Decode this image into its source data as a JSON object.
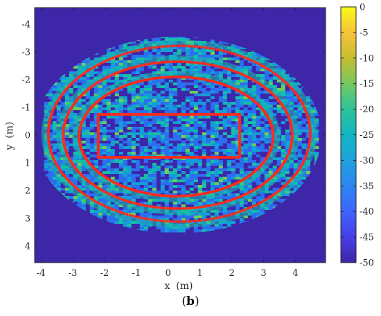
{
  "figure": {
    "caption_open": "(",
    "caption_letter": "b",
    "caption_close": ")"
  },
  "chart_data": {
    "type": "heatmap",
    "title": "",
    "xlabel": "x  (m)",
    "ylabel": "y  (m)",
    "xlim": [
      -4.2,
      4.95
    ],
    "ylim": [
      4.6,
      -4.6
    ],
    "y_axis_reversed": true,
    "xticks": [
      -4,
      -3,
      -2,
      -1,
      0,
      1,
      2,
      3,
      4
    ],
    "xtick_labels": [
      "-4",
      "-3",
      "-2",
      "-1",
      "0",
      "1",
      "2",
      "3",
      "4"
    ],
    "yticks": [
      -4,
      -3,
      -2,
      -1,
      0,
      1,
      2,
      3,
      4
    ],
    "ytick_labels": [
      "-4",
      "-3",
      "-2",
      "-1",
      "0",
      "1",
      "2",
      "3",
      "4"
    ],
    "colorbar": {
      "range": [
        -50,
        0
      ],
      "ticks": [
        0,
        -5,
        -10,
        -15,
        -20,
        -25,
        -30,
        -35,
        -40,
        -45,
        -50
      ],
      "tick_labels": [
        "0",
        "-5",
        "-10",
        "-15",
        "-20",
        "-25",
        "-30",
        "-35",
        "-40",
        "-45",
        "-50"
      ],
      "colormap": "parula"
    },
    "background_color": "#3e26a8",
    "marker_color": "#ff2a1a",
    "field_colors": [
      "#3e26a8",
      "#2c6ef0",
      "#139ed8",
      "#16bfa6",
      "#6ccf5a"
    ],
    "region": {
      "x_range": [
        -3.9,
        4.7
      ],
      "y_range": [
        -3.6,
        3.5
      ]
    },
    "scatter_marker_traces": [
      {
        "name": "outer ring",
        "cx": 0.35,
        "cy": -0.05,
        "rx": 4.12,
        "ry": 3.17
      },
      {
        "name": "middle ring",
        "cx": 0.3,
        "cy": 0.0,
        "rx": 3.6,
        "ry": 2.65
      },
      {
        "name": "inner ring",
        "cx": 0.25,
        "cy": 0.05,
        "rx": 3.05,
        "ry": 2.15
      },
      {
        "name": "inner rectangle",
        "x_range": [
          -2.2,
          2.25
        ],
        "y_range": [
          -0.75,
          0.8
        ]
      }
    ]
  }
}
